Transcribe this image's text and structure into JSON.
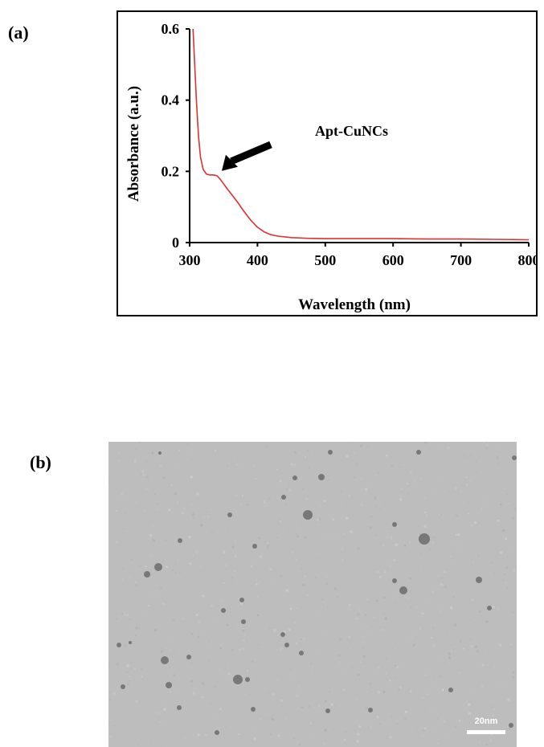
{
  "panels": {
    "a_label": "(a)",
    "b_label": "(b)"
  },
  "chart_data": {
    "type": "line",
    "xlabel": "Wavelength (nm)",
    "ylabel": "Absorbance (a.u.)",
    "xlim": [
      300,
      800
    ],
    "ylim": [
      0,
      0.6
    ],
    "x_ticks": [
      300,
      400,
      500,
      600,
      700,
      800
    ],
    "y_ticks": [
      0,
      0.2,
      0.4,
      0.6
    ],
    "y_tick_labels": [
      "0",
      "0.2",
      "0.4",
      "0.6"
    ],
    "grid": false,
    "annotation": "Apt-CuNCs",
    "arrow_target": {
      "x": 345,
      "y": 0.19
    },
    "line_color": "#e03030",
    "series": [
      {
        "x": [
          305,
          307,
          310,
          313,
          316,
          320,
          325,
          330,
          335,
          340,
          345,
          350,
          355,
          360,
          370,
          380,
          390,
          400,
          410,
          420,
          430,
          450,
          475,
          500,
          550,
          600,
          650,
          700,
          750,
          800
        ],
        "values": [
          0.6,
          0.52,
          0.4,
          0.3,
          0.24,
          0.205,
          0.192,
          0.19,
          0.19,
          0.188,
          0.178,
          0.165,
          0.152,
          0.14,
          0.115,
          0.088,
          0.063,
          0.043,
          0.03,
          0.022,
          0.018,
          0.014,
          0.012,
          0.011,
          0.011,
          0.011,
          0.01,
          0.01,
          0.009,
          0.008
        ]
      }
    ]
  },
  "tem": {
    "scale_label": "20nm"
  }
}
